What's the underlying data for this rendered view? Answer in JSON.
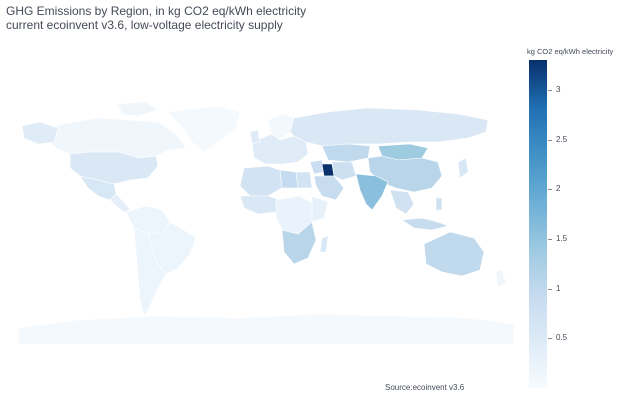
{
  "title": {
    "line1": "GHG Emissions by Region, in kg CO2 eq/kWh electricity",
    "line2": "current ecoinvent v3.6, low-voltage electricity supply"
  },
  "colorbar": {
    "title": "kg CO2 eq/kWh electricity",
    "min": 0,
    "max": 3.3,
    "ticks": [
      "0.5",
      "1",
      "1.5",
      "2",
      "2.5",
      "3"
    ],
    "scale_colors": [
      "#f7fbff",
      "#deebf7",
      "#c6dbef",
      "#9ecae1",
      "#6baed6",
      "#4292c6",
      "#2171b5",
      "#08306b"
    ]
  },
  "source": "Source:ecoinvent v3.6",
  "regions": [
    {
      "id": "north-america",
      "value": 0.45
    },
    {
      "id": "canada",
      "value": 0.15
    },
    {
      "id": "greenland",
      "value": 0.05
    },
    {
      "id": "usa",
      "value": 0.55
    },
    {
      "id": "mexico",
      "value": 0.6
    },
    {
      "id": "central-america",
      "value": 0.35
    },
    {
      "id": "south-america",
      "value": 0.2
    },
    {
      "id": "brazil",
      "value": 0.18
    },
    {
      "id": "europe",
      "value": 0.45
    },
    {
      "id": "scandinavia",
      "value": 0.1
    },
    {
      "id": "russia",
      "value": 0.55
    },
    {
      "id": "kazakhstan",
      "value": 1.0
    },
    {
      "id": "mongolia",
      "value": 1.4
    },
    {
      "id": "china",
      "value": 1.1
    },
    {
      "id": "north-africa",
      "value": 0.7
    },
    {
      "id": "libya",
      "value": 0.95
    },
    {
      "id": "egypt",
      "value": 0.7
    },
    {
      "id": "middle-east",
      "value": 0.85
    },
    {
      "id": "iraq",
      "value": 3.3
    },
    {
      "id": "iran",
      "value": 0.8
    },
    {
      "id": "saudi-arabia",
      "value": 0.9
    },
    {
      "id": "india",
      "value": 1.6
    },
    {
      "id": "southeast-asia",
      "value": 0.75
    },
    {
      "id": "indonesia",
      "value": 0.9
    },
    {
      "id": "west-africa",
      "value": 0.55
    },
    {
      "id": "central-africa",
      "value": 0.25
    },
    {
      "id": "east-africa",
      "value": 0.3
    },
    {
      "id": "south-africa",
      "value": 1.1
    },
    {
      "id": "madagascar",
      "value": 0.6
    },
    {
      "id": "japan",
      "value": 0.6
    },
    {
      "id": "australia",
      "value": 1.0
    },
    {
      "id": "new-zealand",
      "value": 0.15
    },
    {
      "id": "antarctica",
      "value": 0.05
    }
  ]
}
